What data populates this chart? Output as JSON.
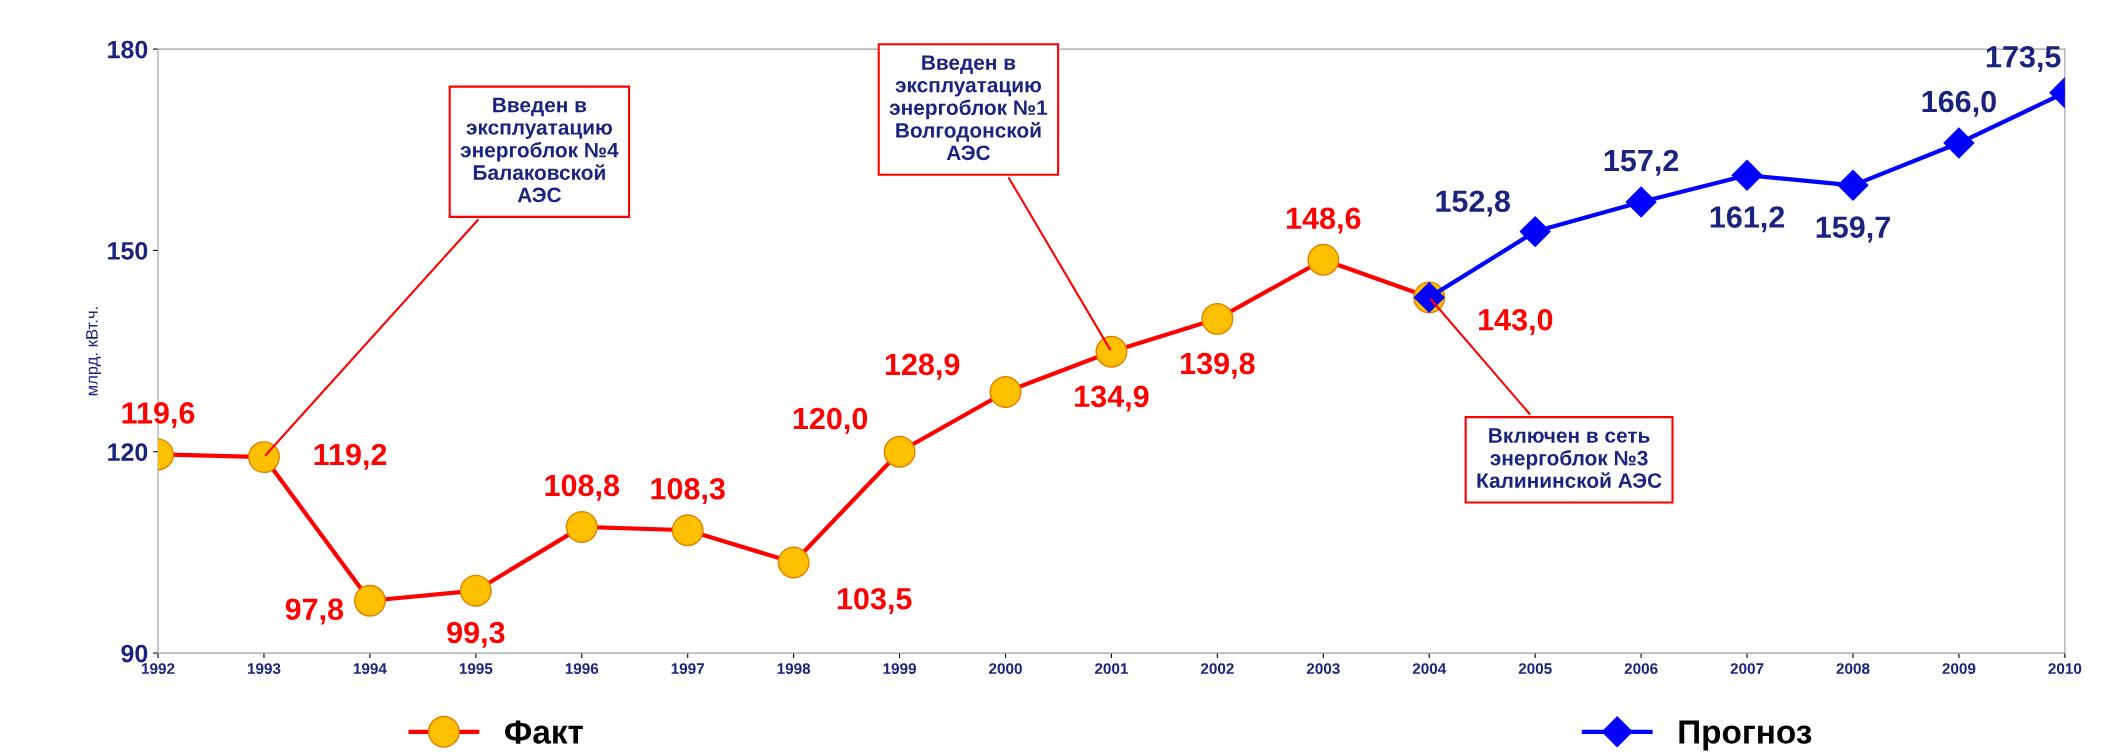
{
  "chart_data": {
    "type": "line",
    "ylabel": "млрд. кВт.ч.",
    "categories": [
      "1992",
      "1993",
      "1994",
      "1995",
      "1996",
      "1997",
      "1998",
      "1999",
      "2000",
      "2001",
      "2002",
      "2003",
      "2004",
      "2005",
      "2006",
      "2007",
      "2008",
      "2009",
      "2010"
    ],
    "series": [
      {
        "name": "Факт",
        "color": "#ff0000",
        "marker": "circle",
        "values": [
          119.6,
          119.2,
          97.8,
          99.3,
          108.8,
          108.3,
          103.5,
          120.0,
          128.9,
          134.9,
          139.8,
          148.6,
          143.0,
          null,
          null,
          null,
          null,
          null,
          null
        ],
        "value_labels": [
          "119,6",
          "119,2",
          "97,8",
          "99,3",
          "108,8",
          "108,3",
          "103,5",
          "120,0",
          "128,9",
          "134,9",
          "139,8",
          "148,6",
          "143,0",
          null,
          null,
          null,
          null,
          null,
          null
        ]
      },
      {
        "name": "Прогноз",
        "color": "#0000ff",
        "marker": "diamond",
        "values": [
          null,
          null,
          null,
          null,
          null,
          null,
          null,
          null,
          null,
          null,
          null,
          null,
          143.0,
          152.8,
          157.2,
          161.2,
          159.7,
          166.0,
          173.5
        ],
        "value_labels": [
          null,
          null,
          null,
          null,
          null,
          null,
          null,
          null,
          null,
          null,
          null,
          null,
          null,
          "152,8",
          "157,2",
          "161,2",
          "159,7",
          "166,0",
          "173,5"
        ]
      }
    ],
    "ylim": [
      90,
      180
    ],
    "yticks": [
      90,
      120,
      150,
      180
    ],
    "grid": false,
    "legend": "bottom",
    "line_style": "solid",
    "annotations": [
      {
        "text": "Введен в\nэксплуатацию\nэнергоблок №4\nБалаковской\nАЭС",
        "x": "1993",
        "y": 119.2
      },
      {
        "text": "Введен в\nэксплуатацию\nэнергоблок №1\nВолгодонской\nАЭС",
        "x": "2001",
        "y": 134.9
      },
      {
        "text": "Включен в сеть\nэнергоблок №3\nКалининской АЭС",
        "x": "2004",
        "y": 143.0
      }
    ]
  }
}
